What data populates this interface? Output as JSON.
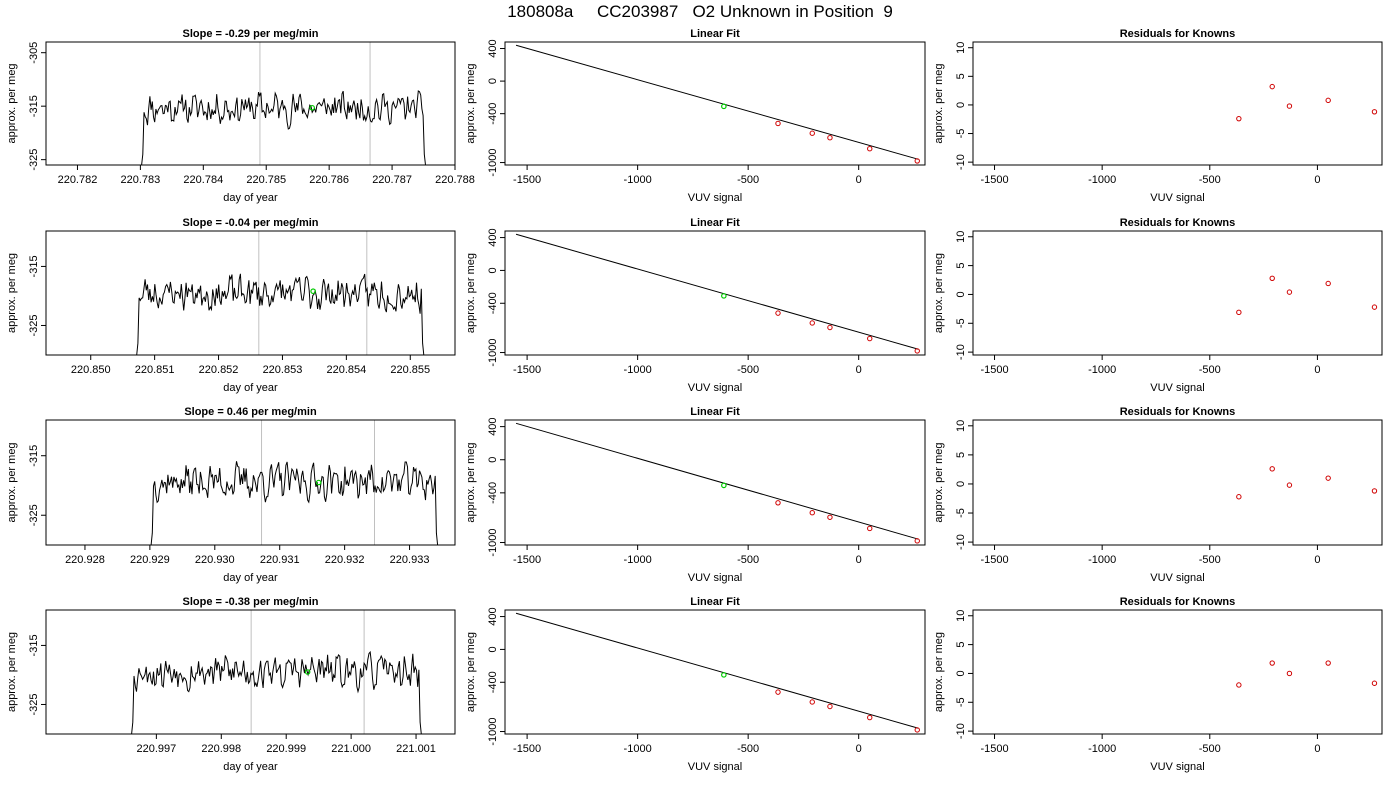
{
  "figure": {
    "title": "180808a     CC203987   O2 Unknown in Position  9"
  },
  "colors": {
    "axis": "#000000",
    "series_line": "#000000",
    "vline": "#c0c0c0",
    "highlight_point": "#00cc00",
    "known_point": "#d00000"
  },
  "chart_data": [
    {
      "type": "line",
      "row": 1,
      "panel": "time-series",
      "title": "Slope =  -0.29  per meg/min",
      "xlabel": "day of year",
      "ylabel": "approx. per meg",
      "xlim": [
        220.7815,
        220.788
      ],
      "ylim": [
        -326,
        -303
      ],
      "xticks": [
        "220.782",
        "220.783",
        "220.784",
        "220.785",
        "220.786",
        "220.787",
        "220.788"
      ],
      "yticks": [
        "-305",
        "-315",
        "-325"
      ],
      "vlines": [
        220.7849,
        220.78665
      ],
      "series_start": 220.783,
      "series_end": 220.78755,
      "mean_level": -315.3,
      "highlight": {
        "x": 220.78573,
        "y": -315.3
      },
      "seed": 11
    },
    {
      "type": "scatter",
      "row": 1,
      "panel": "linear-fit",
      "title": "Linear Fit",
      "xlabel": "VUV signal",
      "ylabel": "approx. per meg",
      "xlim": [
        -1600,
        300
      ],
      "ylim": [
        -1030,
        480
      ],
      "xticks": [
        "-1500",
        "-1000",
        "-500",
        "0"
      ],
      "yticks": [
        "400",
        "0",
        "-400",
        "-1000"
      ],
      "line": {
        "x": [
          -1550,
          270
        ],
        "y": [
          440,
          -960
        ]
      },
      "knowns": {
        "x": [
          -365,
          -210,
          -130,
          50,
          265
        ],
        "y": [
          -520,
          -640,
          -695,
          -830,
          -980
        ]
      },
      "unknown": {
        "x": -610,
        "y": -310
      }
    },
    {
      "type": "scatter",
      "row": 1,
      "panel": "residuals",
      "title": "Residuals for Knowns",
      "xlabel": "VUV signal",
      "ylabel": "approx. per meg",
      "xlim": [
        -1600,
        300
      ],
      "ylim": [
        -10.5,
        11
      ],
      "xticks": [
        "-1500",
        "-1000",
        "-500",
        "0"
      ],
      "yticks": [
        "10",
        "5",
        "0",
        "-5",
        "-10"
      ],
      "points": {
        "x": [
          -365,
          -210,
          -130,
          50,
          265
        ],
        "y": [
          -2.4,
          3.2,
          -0.2,
          0.8,
          -1.2
        ]
      }
    },
    {
      "type": "line",
      "row": 2,
      "panel": "time-series",
      "title": "Slope =  -0.04  per meg/min",
      "xlabel": "day of year",
      "ylabel": "approx. per meg",
      "xlim": [
        220.8493,
        220.8557
      ],
      "ylim": [
        -330,
        -309
      ],
      "xticks": [
        "220.850",
        "220.851",
        "220.852",
        "220.853",
        "220.854",
        "220.855"
      ],
      "yticks": [
        "-315",
        "-325"
      ],
      "vlines": [
        220.85263,
        220.85432
      ],
      "series_start": 220.8507,
      "series_end": 220.85523,
      "mean_level": -319.5,
      "highlight": {
        "x": 220.85348,
        "y": -319.2
      },
      "seed": 23
    },
    {
      "type": "scatter",
      "row": 2,
      "panel": "linear-fit",
      "title": "Linear Fit",
      "xlabel": "VUV signal",
      "ylabel": "approx. per meg",
      "xlim": [
        -1600,
        300
      ],
      "ylim": [
        -1030,
        480
      ],
      "xticks": [
        "-1500",
        "-1000",
        "-500",
        "0"
      ],
      "yticks": [
        "400",
        "0",
        "-400",
        "-1000"
      ],
      "line": {
        "x": [
          -1550,
          270
        ],
        "y": [
          440,
          -960
        ]
      },
      "knowns": {
        "x": [
          -365,
          -210,
          -130,
          50,
          265
        ],
        "y": [
          -520,
          -640,
          -695,
          -830,
          -980
        ]
      },
      "unknown": {
        "x": -610,
        "y": -310
      }
    },
    {
      "type": "scatter",
      "row": 2,
      "panel": "residuals",
      "title": "Residuals for Knowns",
      "xlabel": "VUV signal",
      "ylabel": "approx. per meg",
      "xlim": [
        -1600,
        300
      ],
      "ylim": [
        -10.5,
        11
      ],
      "xticks": [
        "-1500",
        "-1000",
        "-500",
        "0"
      ],
      "yticks": [
        "10",
        "5",
        "0",
        "-5",
        "-10"
      ],
      "points": {
        "x": [
          -365,
          -210,
          -130,
          50,
          265
        ],
        "y": [
          -3.1,
          2.8,
          0.4,
          1.9,
          -2.2
        ]
      }
    },
    {
      "type": "line",
      "row": 3,
      "panel": "time-series",
      "title": "Slope =  0.46  per meg/min",
      "xlabel": "day of year",
      "ylabel": "approx. per meg",
      "xlim": [
        220.9274,
        220.9337
      ],
      "ylim": [
        -330,
        -309
      ],
      "xticks": [
        "220.928",
        "220.929",
        "220.930",
        "220.931",
        "220.932",
        "220.933"
      ],
      "yticks": [
        "-315",
        "-325"
      ],
      "vlines": [
        220.93072,
        220.93246
      ],
      "series_start": 220.929,
      "series_end": 220.93345,
      "mean_level": -319.3,
      "highlight": {
        "x": 220.9316,
        "y": -319.5
      },
      "seed": 37
    },
    {
      "type": "scatter",
      "row": 3,
      "panel": "linear-fit",
      "title": "Linear Fit",
      "xlabel": "VUV signal",
      "ylabel": "approx. per meg",
      "xlim": [
        -1600,
        300
      ],
      "ylim": [
        -1030,
        480
      ],
      "xticks": [
        "-1500",
        "-1000",
        "-500",
        "0"
      ],
      "yticks": [
        "400",
        "0",
        "-400",
        "-1000"
      ],
      "line": {
        "x": [
          -1550,
          270
        ],
        "y": [
          440,
          -960
        ]
      },
      "knowns": {
        "x": [
          -365,
          -210,
          -130,
          50,
          265
        ],
        "y": [
          -520,
          -640,
          -695,
          -830,
          -980
        ]
      },
      "unknown": {
        "x": -610,
        "y": -310
      }
    },
    {
      "type": "scatter",
      "row": 3,
      "panel": "residuals",
      "title": "Residuals for Knowns",
      "xlabel": "VUV signal",
      "ylabel": "approx. per meg",
      "xlim": [
        -1600,
        300
      ],
      "ylim": [
        -10.5,
        11
      ],
      "xticks": [
        "-1500",
        "-1000",
        "-500",
        "0"
      ],
      "yticks": [
        "10",
        "5",
        "0",
        "-5",
        "-10"
      ],
      "points": {
        "x": [
          -365,
          -210,
          -130,
          50,
          265
        ],
        "y": [
          -2.2,
          2.6,
          -0.2,
          1.0,
          -1.2
        ]
      }
    },
    {
      "type": "line",
      "row": 4,
      "panel": "time-series",
      "title": "Slope =  -0.38  per meg/min",
      "xlabel": "day of year",
      "ylabel": "approx. per meg",
      "xlim": [
        220.9953,
        221.0016
      ],
      "ylim": [
        -330,
        -309
      ],
      "xticks": [
        "220.997",
        "220.998",
        "220.999",
        "221.000",
        "221.001"
      ],
      "yticks": [
        "-315",
        "-325"
      ],
      "vlines": [
        220.99846,
        221.0002
      ],
      "series_start": 220.9966,
      "series_end": 221.0011,
      "mean_level": -319.4,
      "highlight": {
        "x": 220.99933,
        "y": -319.5
      },
      "seed": 53
    },
    {
      "type": "scatter",
      "row": 4,
      "panel": "linear-fit",
      "title": "Linear Fit",
      "xlabel": "VUV signal",
      "ylabel": "approx. per meg",
      "xlim": [
        -1600,
        300
      ],
      "ylim": [
        -1030,
        480
      ],
      "xticks": [
        "-1500",
        "-1000",
        "-500",
        "0"
      ],
      "yticks": [
        "400",
        "0",
        "-400",
        "-1000"
      ],
      "line": {
        "x": [
          -1550,
          270
        ],
        "y": [
          440,
          -960
        ]
      },
      "knowns": {
        "x": [
          -365,
          -210,
          -130,
          50,
          265
        ],
        "y": [
          -520,
          -640,
          -695,
          -830,
          -980
        ]
      },
      "unknown": {
        "x": -610,
        "y": -310
      }
    },
    {
      "type": "scatter",
      "row": 4,
      "panel": "residuals",
      "title": "Residuals for Knowns",
      "xlabel": "VUV signal",
      "ylabel": "approx. per meg",
      "xlim": [
        -1600,
        300
      ],
      "ylim": [
        -10.5,
        11
      ],
      "xticks": [
        "-1500",
        "-1000",
        "-500",
        "0"
      ],
      "yticks": [
        "10",
        "5",
        "0",
        "-5",
        "-10"
      ],
      "points": {
        "x": [
          -365,
          -210,
          -130,
          50,
          265
        ],
        "y": [
          -2.0,
          1.8,
          0.0,
          1.8,
          -1.7
        ]
      }
    }
  ]
}
